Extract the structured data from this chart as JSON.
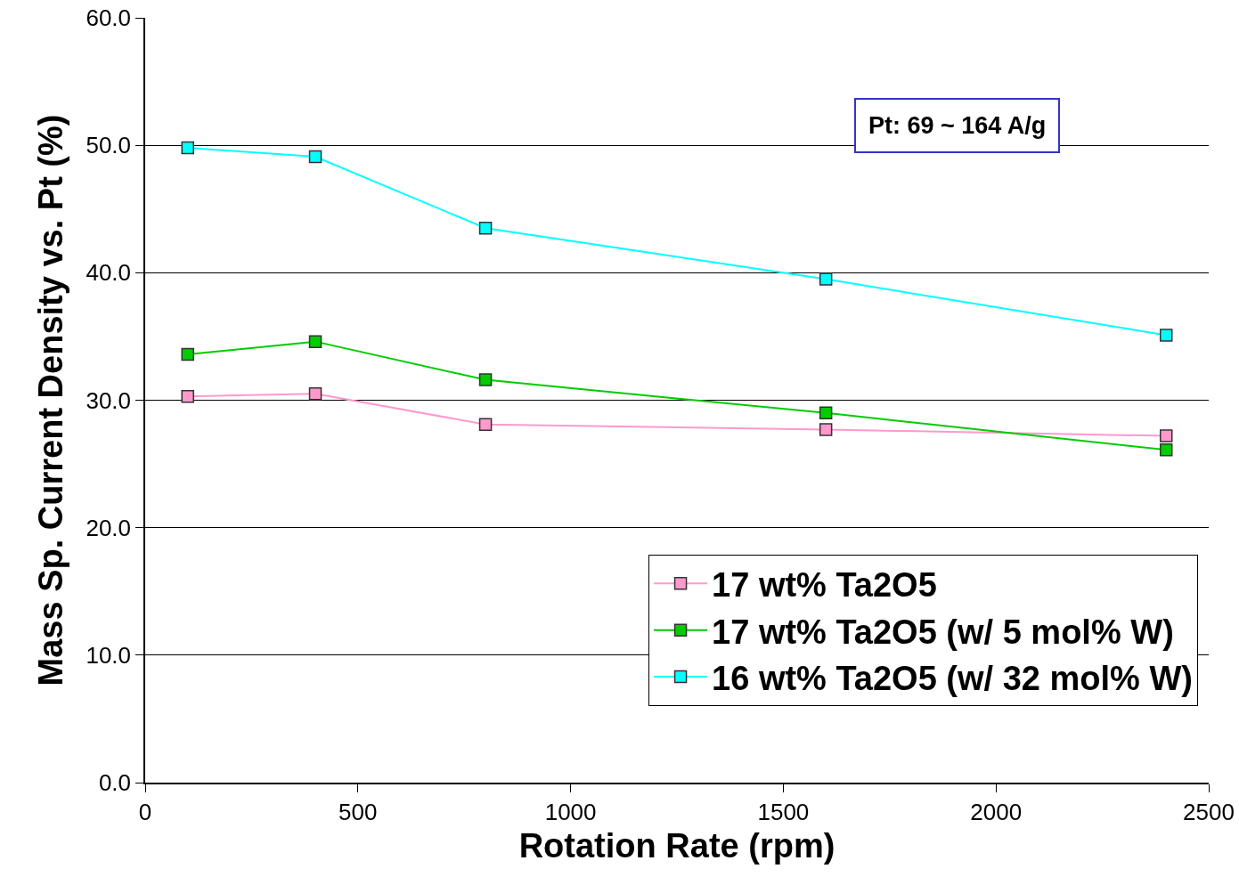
{
  "chart_data": {
    "type": "line",
    "xlabel": "Rotation Rate (rpm)",
    "ylabel": "Mass Sp. Current Density vs. Pt (%)",
    "annotations": [
      "Pt: 69 ~ 164 A/g"
    ],
    "x": [
      100,
      400,
      800,
      1600,
      2400
    ],
    "series": [
      {
        "name": "17 wt% Ta2O5",
        "color": "#ff99cc",
        "values": [
          30.3,
          30.5,
          28.1,
          27.7,
          27.2
        ]
      },
      {
        "name": "17 wt% Ta2O5 (w/ 5 mol% W)",
        "color": "#00cc00",
        "values": [
          33.6,
          34.6,
          31.6,
          29.0,
          26.1
        ]
      },
      {
        "name": "16 wt% Ta2O5 (w/ 32 mol% W)",
        "color": "#00ffff",
        "values": [
          49.8,
          49.1,
          43.5,
          39.5,
          35.1
        ]
      }
    ],
    "xlim": [
      0,
      2500
    ],
    "xticks": [
      0,
      500,
      1000,
      1500,
      2000,
      2500
    ],
    "ylim": [
      0,
      60
    ],
    "yticks": [
      {
        "value": 0,
        "label": "0.0"
      },
      {
        "value": 10,
        "label": "10.0"
      },
      {
        "value": 20,
        "label": "20.0"
      },
      {
        "value": 30,
        "label": "30.0"
      },
      {
        "value": 40,
        "label": "40.0"
      },
      {
        "value": 50,
        "label": "50.0"
      },
      {
        "value": 60,
        "label": "60.0"
      }
    ],
    "grid": "y",
    "legend": "bottom right",
    "marker": "square",
    "line_style": "solid"
  }
}
